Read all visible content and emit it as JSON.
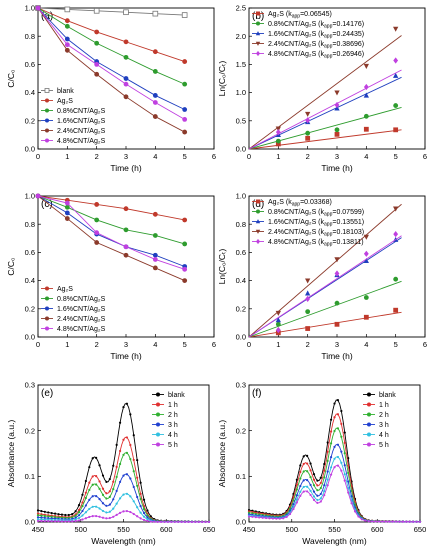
{
  "chart_data": [
    {
      "id": "a",
      "type": "line",
      "panel_label": "(a)",
      "xlabel": "Time (h)",
      "ylabel": "C/C₀",
      "xlim": [
        0,
        6
      ],
      "ylim": [
        0,
        1.0
      ],
      "xticks": [
        0,
        1,
        2,
        3,
        4,
        5,
        6
      ],
      "yticks": [
        0,
        0.2,
        0.4,
        0.6,
        0.8,
        1.0
      ],
      "legend_position": "bottom-left",
      "x": [
        0,
        1,
        2,
        3,
        4,
        5
      ],
      "series": [
        {
          "name": "blank",
          "color": "#777777",
          "marker": "square-open",
          "values": [
            1.0,
            0.99,
            0.98,
            0.97,
            0.96,
            0.95
          ]
        },
        {
          "name": "Ag₂S",
          "color": "#c0392b",
          "marker": "circle",
          "values": [
            1.0,
            0.91,
            0.83,
            0.76,
            0.69,
            0.62
          ]
        },
        {
          "name": "0.8%CNT/Ag₂S",
          "color": "#2e9c2e",
          "marker": "circle",
          "values": [
            1.0,
            0.87,
            0.75,
            0.65,
            0.55,
            0.46
          ]
        },
        {
          "name": "1.6%CNT/Ag₂S",
          "color": "#1f3fbf",
          "marker": "circle",
          "values": [
            1.0,
            0.78,
            0.62,
            0.5,
            0.38,
            0.28
          ]
        },
        {
          "name": "2.4%CNT/Ag₂S",
          "color": "#8b3a2b",
          "marker": "circle",
          "values": [
            1.0,
            0.7,
            0.53,
            0.37,
            0.23,
            0.12
          ]
        },
        {
          "name": "4.8%CNT/Ag₂S",
          "color": "#c040e0",
          "marker": "circle",
          "values": [
            1.0,
            0.74,
            0.6,
            0.46,
            0.33,
            0.21
          ]
        }
      ]
    },
    {
      "id": "b",
      "type": "scatter",
      "panel_label": "(b)",
      "xlabel": "Time (h)",
      "ylabel": "Ln(C₀/Cₜ)",
      "xlim": [
        0,
        6
      ],
      "ylim": [
        0,
        2.5
      ],
      "xticks": [
        0,
        1,
        2,
        3,
        4,
        5,
        6
      ],
      "yticks": [
        0.0,
        0.5,
        1.0,
        1.5,
        2.0,
        2.5
      ],
      "legend_position": "top-left",
      "x": [
        1,
        2,
        3,
        4,
        5
      ],
      "series": [
        {
          "name": "Ag₂S",
          "k_app": "0.06545",
          "color": "#c0392b",
          "marker": "square",
          "slope": 0.06545,
          "values": [
            0.09,
            0.19,
            0.26,
            0.35,
            0.34
          ]
        },
        {
          "name": "0.8%CNT/Ag₂S",
          "k_app": "0.14176",
          "color": "#2e9c2e",
          "marker": "circle",
          "slope": 0.14176,
          "values": [
            0.14,
            0.28,
            0.34,
            0.58,
            0.77
          ]
        },
        {
          "name": "1.6%CNT/Ag₂S",
          "k_app": "0.24435",
          "color": "#1f3fbf",
          "marker": "triangle-up",
          "slope": 0.24435,
          "values": [
            0.25,
            0.48,
            0.72,
            0.95,
            1.3
          ]
        },
        {
          "name": "2.4%CNT/Ag₂S",
          "k_app": "0.38696",
          "color": "#8b3a2b",
          "marker": "triangle-down",
          "slope": 0.38696,
          "values": [
            0.36,
            0.62,
            1.0,
            1.47,
            2.13
          ]
        },
        {
          "name": "4.8%CNT/Ag₂S",
          "k_app": "0.26946",
          "color": "#c040e0",
          "marker": "diamond",
          "slope": 0.26946,
          "values": [
            0.3,
            0.51,
            0.78,
            1.1,
            1.57
          ]
        }
      ]
    },
    {
      "id": "c",
      "type": "line",
      "panel_label": "(c)",
      "xlabel": "Time (h)",
      "ylabel": "C/C₀",
      "xlim": [
        0,
        6
      ],
      "ylim": [
        0,
        1.0
      ],
      "xticks": [
        0,
        1,
        2,
        3,
        4,
        5,
        6
      ],
      "yticks": [
        0,
        0.2,
        0.4,
        0.6,
        0.8,
        1.0
      ],
      "legend_position": "bottom-left",
      "x": [
        0,
        1,
        2,
        3,
        4,
        5
      ],
      "series": [
        {
          "name": "Ag₂S",
          "color": "#c0392b",
          "marker": "circle",
          "values": [
            1.0,
            0.97,
            0.94,
            0.91,
            0.87,
            0.83
          ]
        },
        {
          "name": "0.8%CNT/Ag₂S",
          "color": "#2e9c2e",
          "marker": "circle",
          "values": [
            1.0,
            0.92,
            0.83,
            0.76,
            0.72,
            0.66
          ]
        },
        {
          "name": "1.6%CNT/Ag₂S",
          "color": "#1f3fbf",
          "marker": "circle",
          "values": [
            1.0,
            0.88,
            0.73,
            0.64,
            0.58,
            0.5
          ]
        },
        {
          "name": "2.4%CNT/Ag₂S",
          "color": "#8b3a2b",
          "marker": "circle",
          "values": [
            1.0,
            0.84,
            0.67,
            0.58,
            0.49,
            0.4
          ]
        },
        {
          "name": "4.8%CNT/Ag₂S",
          "color": "#c040e0",
          "marker": "circle",
          "values": [
            1.0,
            0.95,
            0.74,
            0.64,
            0.55,
            0.48
          ]
        }
      ]
    },
    {
      "id": "d",
      "type": "scatter",
      "panel_label": "(d)",
      "xlabel": "Time (h)",
      "ylabel": "Ln(C₀/Cₜ)",
      "xlim": [
        0,
        6
      ],
      "ylim": [
        0,
        1.0
      ],
      "xticks": [
        0,
        1,
        2,
        3,
        4,
        5,
        6
      ],
      "yticks": [
        0.0,
        0.2,
        0.4,
        0.6,
        0.8,
        1.0
      ],
      "legend_position": "top-left",
      "x": [
        1,
        2,
        3,
        4,
        5
      ],
      "series": [
        {
          "name": "Ag₂S",
          "k_app": "0.03368",
          "color": "#c0392b",
          "marker": "square",
          "slope": 0.03368,
          "values": [
            0.03,
            0.06,
            0.09,
            0.14,
            0.19
          ]
        },
        {
          "name": "0.8%CNT/Ag₂S",
          "k_app": "0.07599",
          "color": "#2e9c2e",
          "marker": "circle",
          "slope": 0.07599,
          "values": [
            0.09,
            0.18,
            0.24,
            0.28,
            0.41
          ]
        },
        {
          "name": "1.6%CNT/Ag₂S",
          "k_app": "0.13551",
          "color": "#1f3fbf",
          "marker": "triangle-up",
          "slope": 0.13551,
          "values": [
            0.12,
            0.31,
            0.44,
            0.54,
            0.69
          ]
        },
        {
          "name": "2.4%CNT/Ag₂S",
          "k_app": "0.18103",
          "color": "#8b3a2b",
          "marker": "triangle-down",
          "slope": 0.18103,
          "values": [
            0.17,
            0.4,
            0.55,
            0.71,
            0.91
          ]
        },
        {
          "name": "4.8%CNT/Ag₂S",
          "k_app": "0.13811",
          "color": "#c040e0",
          "marker": "diamond",
          "slope": 0.13811,
          "values": [
            0.05,
            0.27,
            0.45,
            0.59,
            0.73
          ]
        }
      ]
    },
    {
      "id": "e",
      "type": "line",
      "panel_label": "(e)",
      "xlabel": "Wavelength (nm)",
      "ylabel": "Absorbance (a.u.)",
      "xlim": [
        450,
        650
      ],
      "ylim": [
        0,
        0.3
      ],
      "xticks": [
        450,
        500,
        550,
        600,
        650
      ],
      "yticks": [
        0.0,
        0.1,
        0.2,
        0.3
      ],
      "legend_position": "top-right",
      "spectrum": {
        "center": 553,
        "shoulder": 516
      },
      "series": [
        {
          "name": "blank",
          "color": "#000000",
          "marker": "circle",
          "peak": 0.26
        },
        {
          "name": "1 h",
          "color": "#e03030",
          "marker": "circle",
          "peak": 0.186
        },
        {
          "name": "2 h",
          "color": "#30b030",
          "marker": "circle",
          "peak": 0.152
        },
        {
          "name": "3 h",
          "color": "#2040d0",
          "marker": "circle",
          "peak": 0.105
        },
        {
          "name": "4 h",
          "color": "#30c0e0",
          "marker": "circle",
          "peak": 0.062
        },
        {
          "name": "5 h",
          "color": "#c040e0",
          "marker": "circle",
          "peak": 0.024
        }
      ]
    },
    {
      "id": "f",
      "type": "line",
      "panel_label": "(f)",
      "xlabel": "Wavelength (nm)",
      "ylabel": "Absorbance (a.u.)",
      "xlim": [
        450,
        650
      ],
      "ylim": [
        0,
        0.3
      ],
      "xticks": [
        450,
        500,
        550,
        600,
        650
      ],
      "yticks": [
        0.0,
        0.1,
        0.2,
        0.3
      ],
      "legend_position": "top-right",
      "spectrum": {
        "center": 553,
        "shoulder": 516
      },
      "series": [
        {
          "name": "blank",
          "color": "#000000",
          "marker": "circle",
          "peak": 0.268
        },
        {
          "name": "1 h",
          "color": "#e03030",
          "marker": "circle",
          "peak": 0.237
        },
        {
          "name": "2 h",
          "color": "#30b030",
          "marker": "circle",
          "peak": 0.206
        },
        {
          "name": "3 h",
          "color": "#2040d0",
          "marker": "circle",
          "peak": 0.17
        },
        {
          "name": "4 h",
          "color": "#30c0e0",
          "marker": "circle",
          "peak": 0.143
        },
        {
          "name": "5 h",
          "color": "#c040e0",
          "marker": "circle",
          "peak": 0.124
        }
      ]
    }
  ]
}
